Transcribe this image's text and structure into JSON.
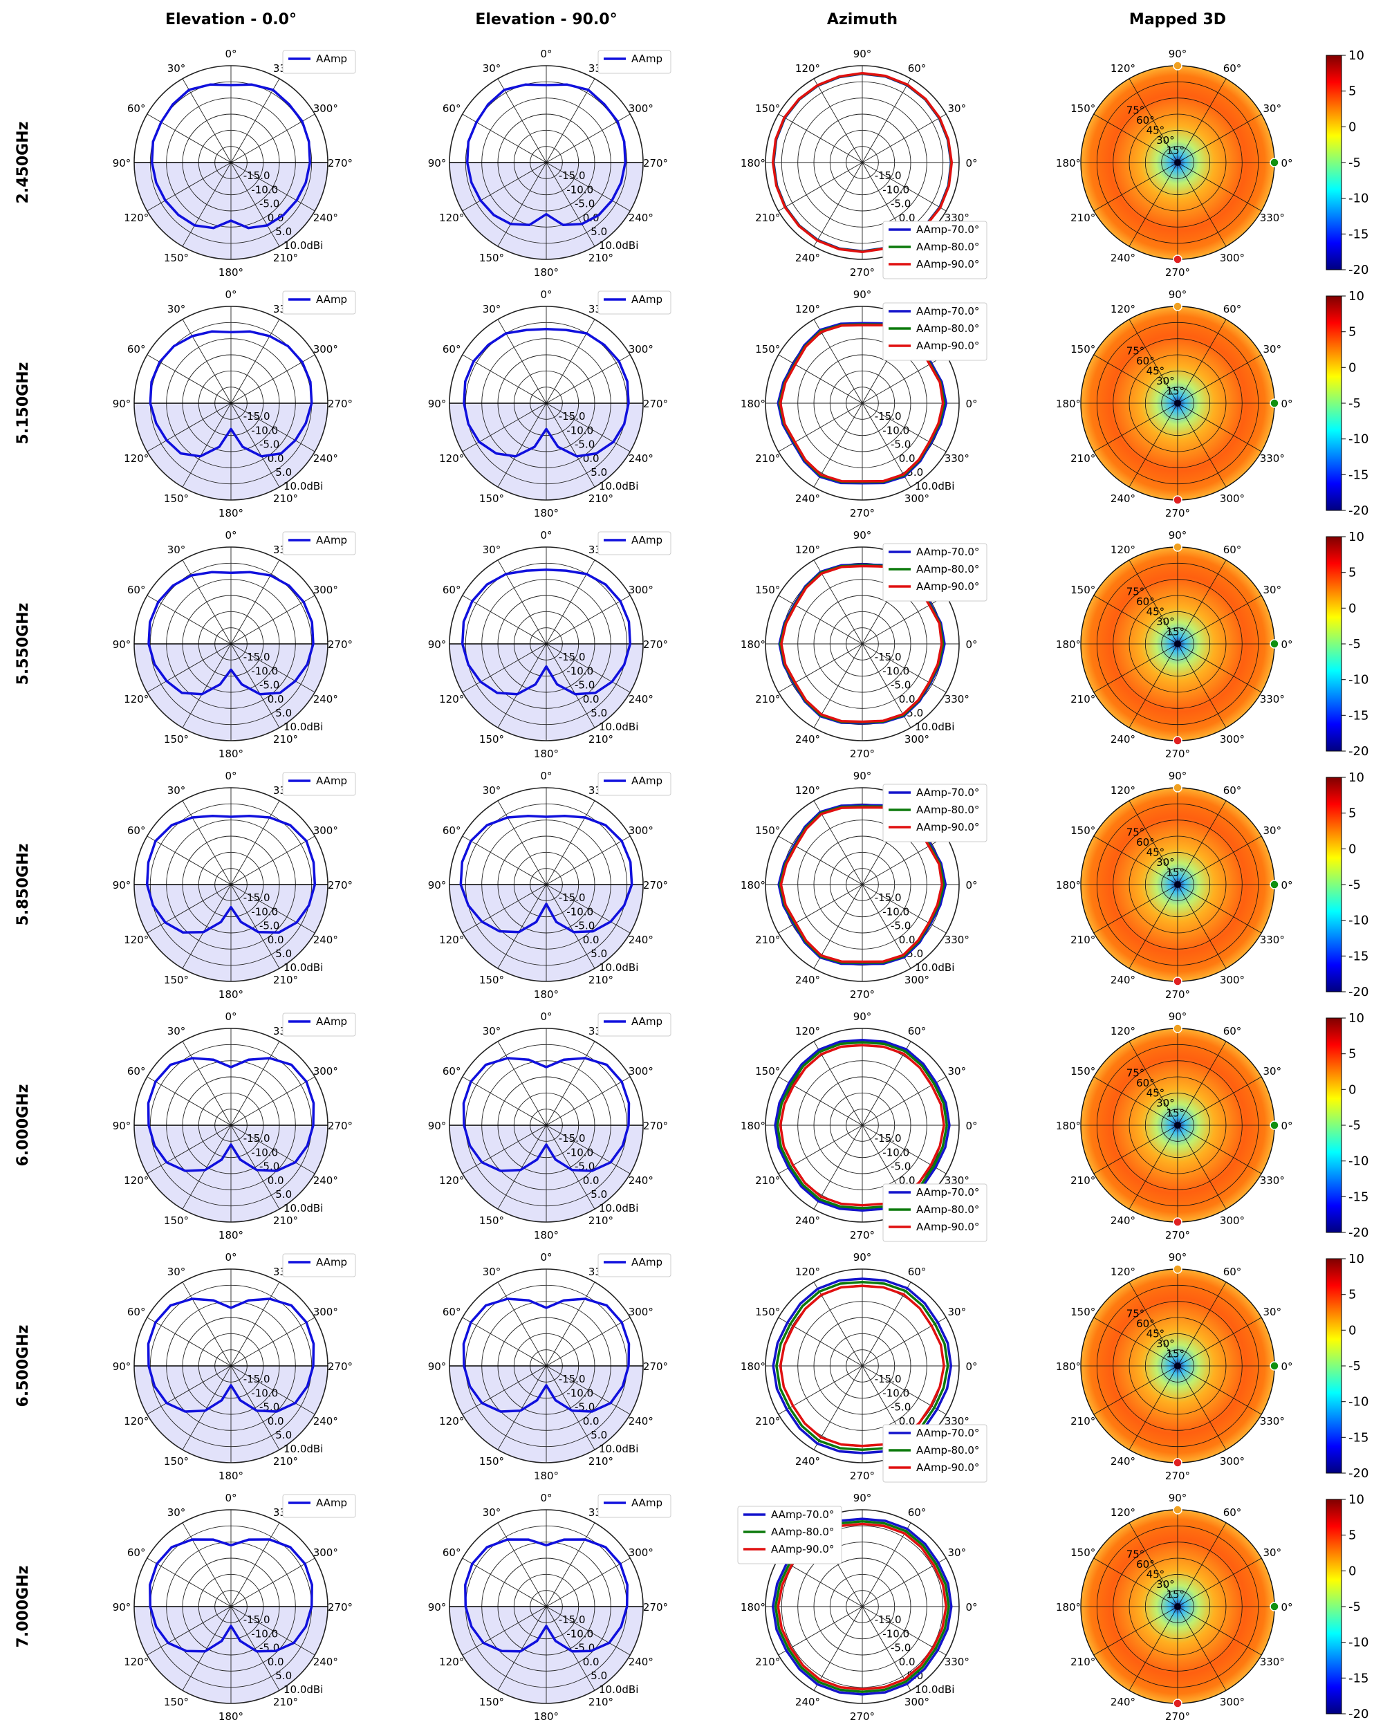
{
  "columns": [
    "Elevation - 0.0°",
    "Elevation - 90.0°",
    "Azimuth",
    "Mapped 3D"
  ],
  "rows": [
    "2.450GHz",
    "5.150GHz",
    "5.550GHz",
    "5.850GHz",
    "6.000GHz",
    "6.500GHz",
    "7.000GHz"
  ],
  "radial_ticks": [
    "-15.0",
    "-10.0",
    "-5.0",
    "0.0",
    "5.0",
    "10.0dBi"
  ],
  "elevation_angle_labels": [
    "0°",
    "30°",
    "60°",
    "90°",
    "120°",
    "150°",
    "180°",
    "210°",
    "240°",
    "270°",
    "300°",
    "330°"
  ],
  "azimuth_angle_labels": [
    "90°",
    "60°",
    "30°",
    "0°",
    "330°",
    "300°",
    "270°",
    "240°",
    "210°",
    "180°",
    "150°",
    "120°"
  ],
  "mapped_radial_labels": [
    "75°",
    "60°",
    "45°",
    "30°",
    "15°"
  ],
  "colorbar_ticks": [
    "10",
    "5",
    "0",
    "-5",
    "-10",
    "-15",
    "-20"
  ],
  "colors": {
    "elevation_trace": "#1010dd",
    "lower_half_fill": "#e2e2fa",
    "az_70": "#1414cc",
    "az_80": "#0c7a0c",
    "az_90": "#e01010",
    "marker_top": "#f0a020",
    "marker_bottom": "#e02020",
    "marker_right": "#109010"
  },
  "chart_data": {
    "type": "polar",
    "radial_range_dBi": [
      -20,
      10
    ],
    "colorbar_range_dB": [
      -20,
      10
    ],
    "colormap": "jet",
    "elevation_legend": [
      "AAmp"
    ],
    "azimuth_legend": [
      "AAmp-70.0°",
      "AAmp-80.0°",
      "AAmp-90.0°"
    ],
    "azimuth_legend_position": [
      "lower-right",
      "upper-right",
      "upper-right",
      "upper-right",
      "lower-right",
      "lower-right",
      "upper-left"
    ],
    "angle_deg": [
      0,
      15,
      30,
      45,
      60,
      75,
      90,
      105,
      120,
      135,
      150,
      165,
      180,
      195,
      210,
      225,
      240,
      255,
      270,
      285,
      300,
      315,
      330,
      345
    ],
    "elevation_0_dBi": [
      [
        4,
        5,
        6,
        5.5,
        5,
        5,
        4.5,
        4,
        3.5,
        3,
        2.5,
        1,
        -2,
        1,
        2.5,
        3,
        3.5,
        4,
        4.5,
        5,
        5.5,
        5.5,
        6,
        5
      ],
      [
        2,
        3,
        4,
        5,
        5.5,
        5.5,
        5,
        4,
        3,
        2,
        -1,
        -6,
        -12,
        -6,
        -1,
        2,
        3,
        4,
        5,
        5.5,
        5.5,
        5,
        4,
        3
      ],
      [
        2,
        3,
        4.5,
        5.5,
        6,
        6,
        5.5,
        4.5,
        3,
        1.5,
        -2,
        -7,
        -12,
        -7,
        -2,
        1.5,
        3,
        4.5,
        5.5,
        6,
        6,
        5.5,
        4.5,
        3
      ],
      [
        1,
        2,
        4,
        6,
        7,
        6.5,
        6,
        5,
        3.5,
        1,
        -3,
        -8,
        -13,
        -8,
        -3,
        1,
        3.5,
        5,
        6,
        6.5,
        7,
        6,
        4,
        2
      ],
      [
        -2,
        1,
        4,
        6.5,
        7,
        6.5,
        5.5,
        4.5,
        3,
        0,
        -4,
        -9,
        -14,
        -9,
        -4,
        0,
        3,
        4.5,
        5.5,
        6.5,
        7,
        6.5,
        4,
        1
      ],
      [
        -2,
        1,
        4,
        6.5,
        7,
        6.5,
        5.5,
        4.5,
        3,
        0,
        -4,
        -9,
        -14,
        -9,
        -4,
        0,
        3,
        4.5,
        5.5,
        6.5,
        7,
        6.5,
        4,
        1
      ],
      [
        -1,
        1.5,
        4,
        6,
        6.5,
        6,
        5,
        4,
        2.5,
        -0.5,
        -4,
        -9,
        -14,
        -9,
        -4,
        -0.5,
        2.5,
        4,
        5,
        6,
        6.5,
        6,
        4,
        1.5
      ]
    ],
    "elevation_90_dBi": [
      [
        4,
        5,
        6,
        5.5,
        5,
        5,
        4.5,
        4,
        3.5,
        3,
        2,
        0,
        -4,
        0,
        2,
        3,
        3.5,
        4,
        4.5,
        5,
        5.5,
        5.5,
        6,
        5
      ],
      [
        3,
        3.5,
        5,
        5.5,
        6,
        6,
        5.5,
        5,
        4,
        2,
        -1,
        -6,
        -12,
        -6,
        -1,
        2,
        4,
        5,
        5.5,
        6,
        6,
        5.5,
        5,
        3.5
      ],
      [
        3,
        3.5,
        5,
        6,
        6.5,
        6.5,
        6,
        5,
        3.5,
        1.5,
        -2,
        -7,
        -13,
        -7,
        -2,
        1.5,
        3.5,
        5,
        6,
        6.5,
        6.5,
        6,
        5,
        3.5
      ],
      [
        1,
        2,
        4,
        6,
        7,
        7,
        6.5,
        5,
        3,
        0.5,
        -3,
        -8,
        -14,
        -8,
        -3,
        0.5,
        3,
        5,
        6.5,
        7,
        7,
        6,
        4,
        2
      ],
      [
        -2,
        1,
        4,
        6.5,
        7,
        6.5,
        5.5,
        4.5,
        3,
        0,
        -4,
        -9,
        -14,
        -9,
        -4,
        0,
        3,
        4.5,
        5.5,
        6.5,
        7,
        6.5,
        4,
        1
      ],
      [
        -2,
        1,
        4,
        6.5,
        7,
        6.5,
        5.5,
        4.5,
        3,
        0,
        -4,
        -9,
        -14,
        -9,
        -4,
        0,
        3,
        4.5,
        5.5,
        6.5,
        7,
        6.5,
        4,
        1
      ],
      [
        -1,
        1.5,
        4,
        6,
        6.5,
        6,
        5,
        4,
        2.5,
        -0.5,
        -4,
        -9,
        -14,
        -9,
        -4,
        -0.5,
        2.5,
        4,
        5,
        6,
        6.5,
        6,
        4,
        1.5
      ]
    ],
    "azimuth_series_dBi": [
      [
        [
          7.5,
          7.6,
          7.7,
          7.6,
          7.5,
          7.4,
          7.5,
          7.6,
          7.7,
          7.6,
          7.5,
          7.4,
          7.5,
          7.6,
          7.7,
          7.6,
          7.5,
          7.4,
          7.5,
          7.6,
          7.7,
          7.6,
          7.5,
          7.4
        ],
        [
          7.6,
          7.7,
          7.8,
          7.7,
          7.6,
          7.5,
          7.6,
          7.7,
          7.8,
          7.7,
          7.6,
          7.5,
          7.6,
          7.7,
          7.8,
          7.7,
          7.6,
          7.5,
          7.6,
          7.7,
          7.8,
          7.7,
          7.6,
          7.5
        ],
        [
          7.7,
          7.8,
          7.9,
          7.8,
          7.7,
          7.6,
          7.7,
          7.8,
          7.9,
          7.8,
          7.7,
          7.6,
          7.7,
          7.8,
          7.9,
          7.8,
          7.7,
          7.6,
          7.7,
          7.8,
          7.9,
          7.8,
          7.7,
          7.6
        ]
      ],
      [
        [
          6,
          5.2,
          4.6,
          5.4,
          6.2,
          5.6,
          4.8,
          5.6,
          6.3,
          5.5,
          4.7,
          5.5,
          6.1,
          5.3,
          4.6,
          5.4,
          6.2,
          5.5,
          4.8,
          5.6,
          6.3,
          5.5,
          4.7,
          5.5
        ],
        [
          5.4,
          4.7,
          4.2,
          5,
          5.8,
          5.2,
          4.4,
          5.2,
          5.9,
          5.1,
          4.3,
          5.1,
          5.7,
          4.9,
          4.2,
          5,
          5.8,
          5.1,
          4.4,
          5.2,
          5.9,
          5.1,
          4.3,
          5.1
        ],
        [
          5,
          4.4,
          4,
          4.8,
          5.5,
          5,
          4.2,
          5,
          5.6,
          4.9,
          4.1,
          4.9,
          5.4,
          4.7,
          4,
          4.8,
          5.5,
          4.9,
          4.2,
          5,
          5.6,
          4.9,
          4.1,
          4.9
        ]
      ],
      [
        [
          5.5,
          4.9,
          4.4,
          5.1,
          5.8,
          5.2,
          4.6,
          5.3,
          5.9,
          5.2,
          4.5,
          5.2,
          5.7,
          5,
          4.4,
          5.1,
          5.8,
          5.2,
          4.6,
          5.3,
          5.9,
          5.2,
          4.5,
          5.2
        ],
        [
          5,
          4.5,
          4.1,
          4.8,
          5.5,
          4.9,
          4.3,
          5,
          5.6,
          4.9,
          4.2,
          4.9,
          5.4,
          4.7,
          4.1,
          4.8,
          5.5,
          4.9,
          4.3,
          5,
          5.6,
          4.9,
          4.2,
          4.9
        ],
        [
          4.6,
          4.2,
          3.9,
          4.6,
          5.2,
          4.7,
          4.1,
          4.8,
          5.3,
          4.7,
          4,
          4.7,
          5.1,
          4.5,
          3.9,
          4.6,
          5.2,
          4.7,
          4.1,
          4.8,
          5.3,
          4.7,
          4,
          4.7
        ]
      ],
      [
        [
          5.8,
          5,
          4.4,
          5.2,
          6,
          5.4,
          4.6,
          5.4,
          6.1,
          5.3,
          4.5,
          5.3,
          5.9,
          5.1,
          4.4,
          5.2,
          6,
          5.3,
          4.6,
          5.4,
          6.1,
          5.3,
          4.5,
          5.3
        ],
        [
          5.2,
          4.5,
          4,
          4.8,
          5.6,
          5,
          4.2,
          5,
          5.7,
          4.9,
          4.1,
          4.9,
          5.5,
          4.7,
          4,
          4.8,
          5.6,
          4.9,
          4.2,
          5,
          5.7,
          4.9,
          4.1,
          4.9
        ],
        [
          4.7,
          4.1,
          3.8,
          4.5,
          5.3,
          4.7,
          3.9,
          4.7,
          5.4,
          4.6,
          3.8,
          4.6,
          5.2,
          4.4,
          3.8,
          4.5,
          5.3,
          4.6,
          3.9,
          4.7,
          5.4,
          4.6,
          3.8,
          4.6
        ]
      ],
      [
        [
          7,
          6.6,
          6.2,
          6.6,
          7,
          6.8,
          6.4,
          6.8,
          7.2,
          6.8,
          6.4,
          6.8,
          7,
          6.6,
          6.2,
          6.6,
          7,
          6.8,
          6.4,
          6.8,
          7.2,
          6.8,
          6.4,
          6.8
        ],
        [
          6.2,
          5.8,
          5.5,
          5.9,
          6.3,
          6.1,
          5.7,
          6.1,
          6.5,
          6.1,
          5.7,
          6.1,
          6.3,
          5.9,
          5.5,
          5.9,
          6.3,
          6.1,
          5.7,
          6.1,
          6.5,
          6.1,
          5.7,
          6.1
        ],
        [
          5.3,
          4.9,
          4.6,
          5,
          5.4,
          5.2,
          4.8,
          5.2,
          5.6,
          5.2,
          4.8,
          5.2,
          5.4,
          5,
          4.6,
          5,
          5.4,
          5.2,
          4.8,
          5.2,
          5.6,
          5.2,
          4.8,
          5.2
        ]
      ],
      [
        [
          7.5,
          7.2,
          6.8,
          7.2,
          7.6,
          7.4,
          7,
          7.4,
          7.8,
          7.4,
          7,
          7.4,
          7.6,
          7.2,
          6.8,
          7.2,
          7.6,
          7.4,
          7,
          7.4,
          7.8,
          7.4,
          7,
          7.4
        ],
        [
          6.5,
          6.1,
          5.8,
          6.2,
          6.6,
          6.4,
          6,
          6.4,
          6.8,
          6.4,
          6,
          6.4,
          6.6,
          6.2,
          5.8,
          6.2,
          6.6,
          6.4,
          6,
          6.4,
          6.8,
          6.4,
          6,
          6.4
        ],
        [
          5.3,
          4.9,
          4.6,
          5,
          5.4,
          5.2,
          4.8,
          5.2,
          5.6,
          5.2,
          4.8,
          5.2,
          5.4,
          5,
          4.6,
          5,
          5.4,
          5.2,
          4.8,
          5.2,
          5.6,
          5.2,
          4.8,
          5.2
        ]
      ],
      [
        [
          7.6,
          7.3,
          7,
          7.3,
          7.7,
          7.5,
          7.2,
          7.5,
          7.8,
          7.5,
          7.2,
          7.5,
          7.7,
          7.3,
          7,
          7.3,
          7.7,
          7.5,
          7.2,
          7.5,
          7.8,
          7.5,
          7.2,
          7.5
        ],
        [
          6.8,
          6.5,
          6.2,
          6.5,
          6.9,
          6.7,
          6.4,
          6.7,
          7,
          6.7,
          6.4,
          6.7,
          6.9,
          6.5,
          6.2,
          6.5,
          6.9,
          6.7,
          6.4,
          6.7,
          7,
          6.7,
          6.4,
          6.7
        ],
        [
          6,
          5.7,
          5.4,
          5.7,
          6.1,
          5.9,
          5.6,
          5.9,
          6.2,
          5.9,
          5.6,
          5.9,
          6.1,
          5.7,
          5.4,
          5.7,
          6.1,
          5.9,
          5.6,
          5.9,
          6.2,
          5.9,
          5.6,
          5.9
        ]
      ]
    ]
  }
}
